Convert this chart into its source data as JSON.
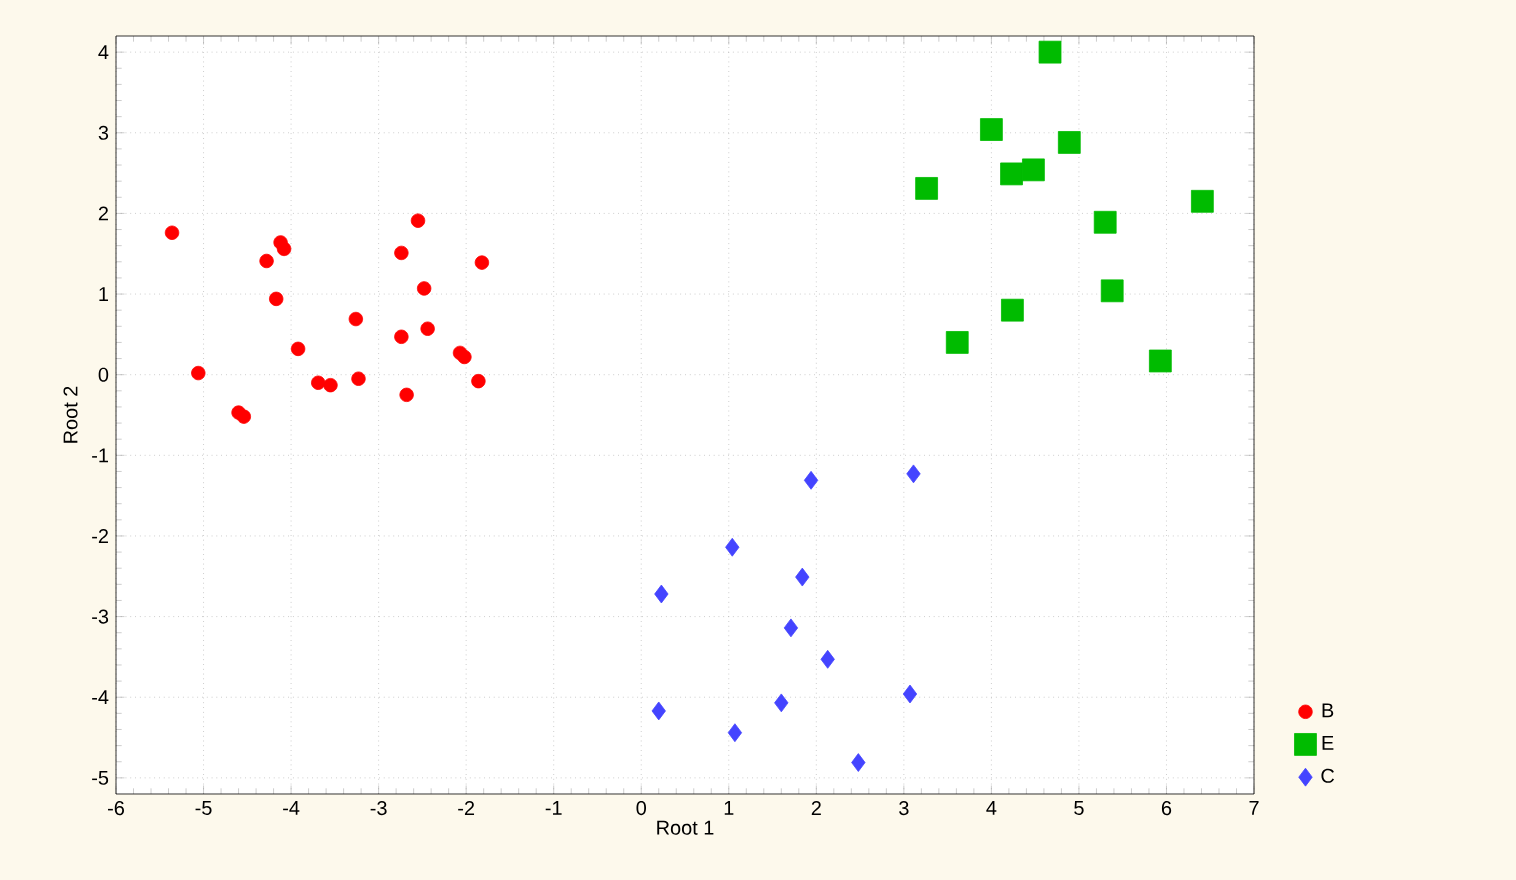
{
  "chart_data": {
    "type": "scatter",
    "xlabel": "Root 1",
    "ylabel": "Root 2",
    "xlim": [
      -6,
      7
    ],
    "ylim": [
      -5.2,
      4.2
    ],
    "xticks": [
      -6,
      -5,
      -4,
      -3,
      -2,
      -1,
      0,
      1,
      2,
      3,
      4,
      5,
      6,
      7
    ],
    "yticks": [
      -5,
      -4,
      -3,
      -2,
      -1,
      0,
      1,
      2,
      3,
      4
    ],
    "grid": true,
    "legend": "bottom right",
    "series": [
      {
        "name": "B",
        "color": "#ff0000",
        "marker": "circle",
        "x": [
          -5.36,
          -5.06,
          -4.6,
          -4.54,
          -4.28,
          -4.12,
          -4.08,
          -4.17,
          -3.92,
          -3.69,
          -3.55,
          -3.26,
          -3.23,
          -2.74,
          -2.74,
          -2.68,
          -2.55,
          -2.48,
          -2.44,
          -2.07,
          -2.02,
          -1.86,
          -1.82
        ],
        "values": [
          1.76,
          0.02,
          -0.47,
          -0.52,
          1.41,
          1.64,
          1.56,
          0.94,
          0.32,
          -0.1,
          -0.13,
          0.69,
          -0.05,
          1.51,
          0.47,
          -0.25,
          1.91,
          1.07,
          0.57,
          0.27,
          0.22,
          -0.08,
          1.39
        ]
      },
      {
        "name": "E",
        "color": "#00bb00",
        "marker": "square",
        "x": [
          4.67,
          4.0,
          4.89,
          4.23,
          4.48,
          3.26,
          6.41,
          5.3,
          5.38,
          4.24,
          3.61,
          5.93
        ],
        "values": [
          4.0,
          3.04,
          2.88,
          2.49,
          2.54,
          2.31,
          2.15,
          1.89,
          1.04,
          0.8,
          0.4,
          0.17
        ]
      },
      {
        "name": "C",
        "color": "#4444ff",
        "marker": "diamond",
        "x": [
          1.94,
          3.11,
          1.04,
          0.23,
          1.84,
          1.71,
          2.13,
          0.2,
          1.6,
          3.07,
          1.07,
          2.48
        ],
        "values": [
          -1.31,
          -1.23,
          -2.14,
          -2.72,
          -2.51,
          -3.14,
          -3.53,
          -4.17,
          -4.07,
          -3.96,
          -4.44,
          -4.81
        ]
      }
    ]
  }
}
